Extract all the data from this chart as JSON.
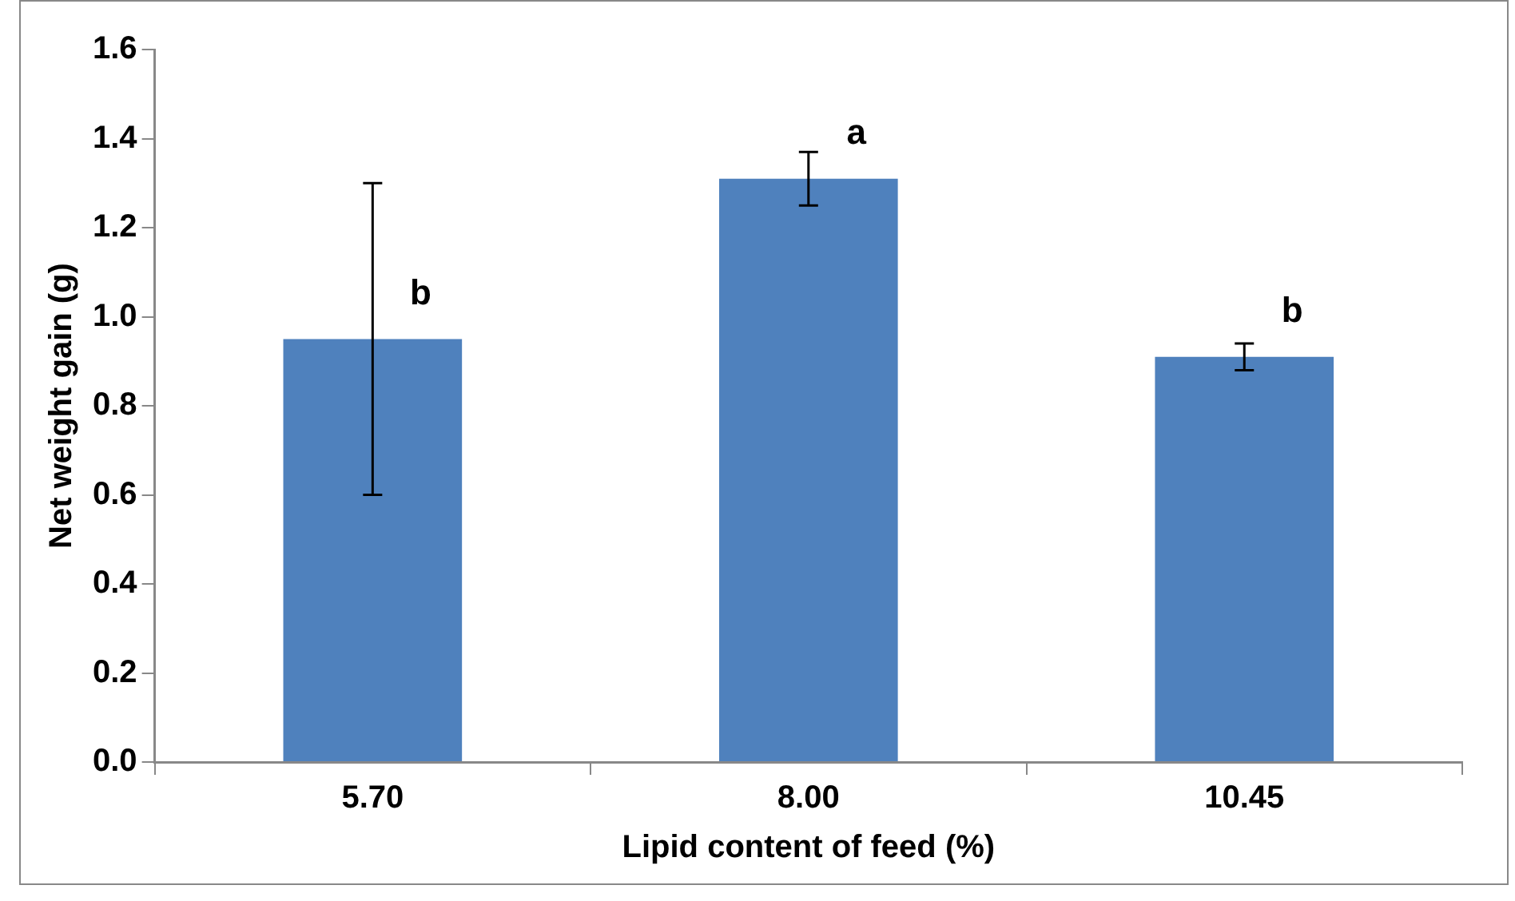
{
  "chart_data": {
    "type": "bar",
    "xlabel": "Lipid content of feed (%)",
    "ylabel": "Net weight gain (g)",
    "categories": [
      "5.70",
      "8.00",
      "10.45"
    ],
    "values": [
      0.95,
      1.31,
      0.91
    ],
    "errors": [
      0.35,
      0.06,
      0.03
    ],
    "color": "#4f81bd",
    "ylim": [
      0,
      1.6
    ],
    "yticks": [
      {
        "value": 0,
        "label": "0.0"
      },
      {
        "value": 0.2,
        "label": "0.2"
      },
      {
        "value": 0.4,
        "label": "0.4"
      },
      {
        "value": 0.6,
        "label": "0.6"
      },
      {
        "value": 0.8,
        "label": "0.8"
      },
      {
        "value": 1.0,
        "label": "1.0"
      },
      {
        "value": 1.2,
        "label": "1.2"
      },
      {
        "value": 1.4,
        "label": "1.4"
      },
      {
        "value": 1.6,
        "label": "1.6"
      }
    ],
    "annotations": [
      "b",
      "a",
      "b"
    ],
    "grid": false,
    "legend": false
  }
}
